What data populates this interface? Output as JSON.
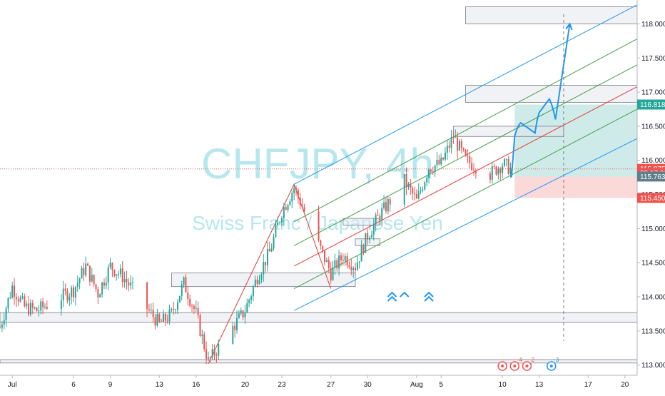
{
  "watermark": {
    "title": "CHFJPY, 4h",
    "subtitle": "Swiss Franc / Japanese Yen"
  },
  "colors": {
    "up": "#26a69a",
    "down": "#ef5350",
    "pitch_median": "#e53935",
    "pitch_inner": "#43a047",
    "pitch_outer": "#2196f3",
    "zone_fill": "#e0e3eb",
    "zone_stroke": "#787b86",
    "target_fill": "#26a69a",
    "stop_fill": "#ef5350",
    "arrow": "#2196f3"
  },
  "price_labels": [
    {
      "name": "target-price-label",
      "text": "116.818",
      "value": 116.818,
      "bg": "#26a69a",
      "fg": "#ffffff"
    },
    {
      "name": "last-price-label",
      "text": "115.875",
      "value": 115.875,
      "bg": "#ef5350",
      "fg": "#ffffff"
    },
    {
      "name": "countdown-label",
      "text": "03:17:36",
      "value": 115.815,
      "bg": "#ef5350",
      "fg": "#ffffff"
    },
    {
      "name": "entry-price-label",
      "text": "115.763",
      "value": 115.763,
      "bg": "#607d8b",
      "fg": "#ffffff"
    },
    {
      "name": "stop-price-label",
      "text": "115.450",
      "value": 115.45,
      "bg": "#ef5350",
      "fg": "#ffffff"
    }
  ],
  "events": [
    {
      "name": "event-flag-1",
      "label": "",
      "date": "2020-08-10",
      "color": "#ef5350"
    },
    {
      "name": "event-flag-2",
      "label": "4",
      "date": "2020-08-11",
      "color": "#ef5350"
    },
    {
      "name": "event-flag-3",
      "label": "2",
      "date": "2020-08-12",
      "color": "#ef5350"
    },
    {
      "name": "event-flag-4",
      "label": "3",
      "date": "2020-08-14",
      "color": "#2196f3"
    }
  ],
  "chart_data": {
    "type": "candlestick",
    "symbol": "CHFJPY",
    "timeframe": "4h",
    "x_range": [
      "2020-06-30",
      "2020-08-21"
    ],
    "ylim": [
      112.85,
      118.35
    ],
    "y_ticks": [
      "113.000",
      "113.500",
      "114.000",
      "114.500",
      "115.000",
      "115.500",
      "116.000",
      "116.500",
      "117.000",
      "117.500",
      "118.000"
    ],
    "x_ticks": [
      {
        "label": "Jul",
        "date": "2020-07-01"
      },
      {
        "label": "6",
        "date": "2020-07-06"
      },
      {
        "label": "9",
        "date": "2020-07-09"
      },
      {
        "label": "13",
        "date": "2020-07-13"
      },
      {
        "label": "16",
        "date": "2020-07-16"
      },
      {
        "label": "20",
        "date": "2020-07-20"
      },
      {
        "label": "23",
        "date": "2020-07-23"
      },
      {
        "label": "27",
        "date": "2020-07-27"
      },
      {
        "label": "30",
        "date": "2020-07-30"
      },
      {
        "label": "Aug",
        "date": "2020-08-03"
      },
      {
        "label": "5",
        "date": "2020-08-05"
      },
      {
        "label": "10",
        "date": "2020-08-10"
      },
      {
        "label": "13",
        "date": "2020-08-13"
      },
      {
        "label": "17",
        "date": "2020-08-17"
      },
      {
        "label": "20",
        "date": "2020-08-20"
      }
    ],
    "last_price": 115.875,
    "price_path": [
      [
        "2020-06-30",
        113.55
      ],
      [
        "2020-07-01",
        114.15
      ],
      [
        "2020-07-02",
        113.85
      ],
      [
        "2020-07-03",
        113.8
      ],
      [
        "2020-07-06",
        114.1
      ],
      [
        "2020-07-07",
        114.45
      ],
      [
        "2020-07-08",
        114.05
      ],
      [
        "2020-07-09",
        114.45
      ],
      [
        "2020-07-10",
        114.3
      ],
      [
        "2020-07-13",
        113.6
      ],
      [
        "2020-07-14",
        113.75
      ],
      [
        "2020-07-15",
        114.2
      ],
      [
        "2020-07-16",
        113.75
      ],
      [
        "2020-07-17",
        113.05
      ],
      [
        "2020-07-20",
        113.8
      ],
      [
        "2020-07-21",
        114.3
      ],
      [
        "2020-07-22",
        114.65
      ],
      [
        "2020-07-23",
        115.25
      ],
      [
        "2020-07-24",
        115.6
      ],
      [
        "2020-07-27",
        114.35
      ],
      [
        "2020-07-28",
        114.6
      ],
      [
        "2020-07-29",
        114.45
      ],
      [
        "2020-07-30",
        114.9
      ],
      [
        "2020-07-31",
        115.2
      ],
      [
        "2020-08-02",
        115.7
      ],
      [
        "2020-08-03",
        115.4
      ],
      [
        "2020-08-04",
        115.9
      ],
      [
        "2020-08-05",
        115.95
      ],
      [
        "2020-08-06",
        116.35
      ],
      [
        "2020-08-07",
        116.0
      ],
      [
        "2020-08-09",
        115.8
      ],
      [
        "2020-08-10",
        115.95
      ],
      [
        "2020-08-10T16:00",
        115.875
      ]
    ],
    "pitchfork": {
      "points": [
        {
          "date": "2020-07-17",
          "price": 113.02
        },
        {
          "date": "2020-07-24",
          "price": 115.65
        },
        {
          "date": "2020-07-27",
          "price": 114.12
        }
      ],
      "line_dates": [
        "2020-07-24",
        "2020-08-21"
      ],
      "lines": [
        {
          "name": "pitch-outer-upper",
          "role": "outer",
          "prices": [
            115.65,
            118.28
          ]
        },
        {
          "name": "pitch-inner-upper-1",
          "role": "inner",
          "prices": [
            115.1,
            117.78
          ]
        },
        {
          "name": "pitch-inner-upper-2",
          "role": "inner",
          "prices": [
            114.75,
            117.4
          ]
        },
        {
          "name": "pitch-median",
          "role": "median",
          "prices": [
            114.45,
            117.08
          ]
        },
        {
          "name": "pitch-inner-lower",
          "role": "inner",
          "prices": [
            114.12,
            116.75
          ]
        },
        {
          "name": "pitch-outer-lower",
          "role": "outer",
          "prices": [
            113.8,
            116.32
          ]
        }
      ]
    },
    "zones": [
      {
        "name": "zone-118",
        "x": [
          "2020-08-07",
          "2020-08-21"
        ],
        "y": [
          118.0,
          118.25
        ]
      },
      {
        "name": "zone-117",
        "x": [
          "2020-08-07",
          "2020-08-21"
        ],
        "y": [
          116.85,
          117.1
        ]
      },
      {
        "name": "zone-1164",
        "x": [
          "2020-08-06",
          "2020-08-15"
        ],
        "y": [
          116.35,
          116.5
        ]
      },
      {
        "name": "zone-1151",
        "x": [
          "2020-07-28",
          "2020-07-31"
        ],
        "y": [
          115.05,
          115.15
        ]
      },
      {
        "name": "zone-1148",
        "x": [
          "2020-07-29",
          "2020-07-31"
        ],
        "y": [
          114.75,
          114.85
        ]
      },
      {
        "name": "zone-1143",
        "x": [
          "2020-07-14",
          "2020-07-29"
        ],
        "y": [
          114.15,
          114.35
        ]
      },
      {
        "name": "zone-1137",
        "x": [
          "2020-06-30",
          "2020-08-21"
        ],
        "y": [
          113.63,
          113.77
        ]
      },
      {
        "name": "zone-1130",
        "x": [
          "2020-06-30",
          "2020-08-21"
        ],
        "y": [
          113.03,
          113.08
        ]
      }
    ],
    "position": {
      "x": [
        "2020-08-11",
        "2020-08-21"
      ],
      "entry": 115.763,
      "target": 116.818,
      "stop": 115.45
    },
    "projection_path": [
      [
        "2020-08-10T18:00",
        115.76
      ],
      [
        "2020-08-11",
        116.35
      ],
      [
        "2020-08-11T12:00",
        116.55
      ],
      [
        "2020-08-12T16:00",
        116.4
      ],
      [
        "2020-08-13",
        116.7
      ],
      [
        "2020-08-13T20:00",
        116.9
      ],
      [
        "2020-08-14T08:00",
        116.6
      ],
      [
        "2020-08-15T12:00",
        118.0
      ]
    ],
    "chevrons": [
      {
        "name": "double-chevron-1",
        "date": "2020-08-01",
        "price": 114.0,
        "count": 2
      },
      {
        "name": "single-chevron",
        "date": "2020-08-02",
        "price": 114.0,
        "count": 1
      },
      {
        "name": "double-chevron-2",
        "date": "2020-08-04",
        "price": 114.0,
        "count": 2
      }
    ],
    "vertical_marker_date": "2020-08-15"
  }
}
